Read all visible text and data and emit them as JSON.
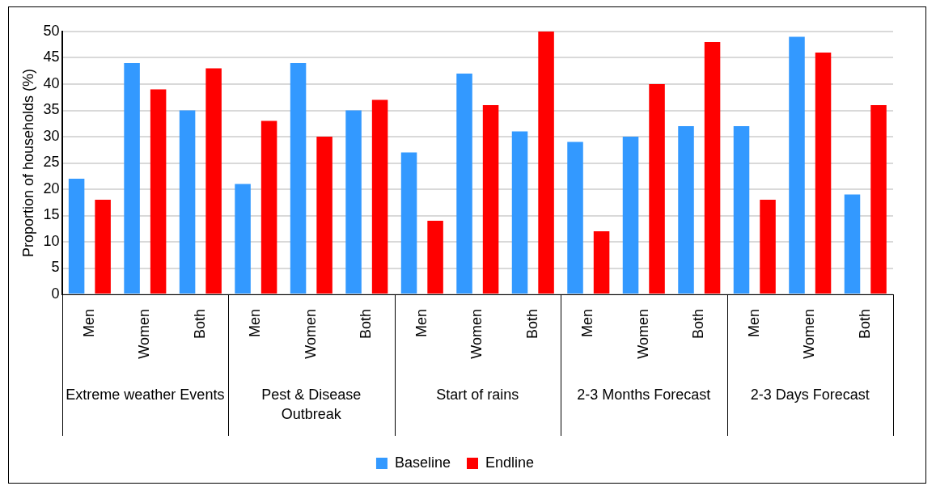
{
  "chart_data": {
    "type": "bar",
    "ylabel": "Proportion of households (%)",
    "categories": [
      "Men",
      "Women",
      "Both",
      "Men",
      "Women",
      "Both",
      "Men",
      "Women",
      "Both",
      "Men",
      "Women",
      "Both",
      "Men",
      "Women",
      "Both"
    ],
    "series": [
      {
        "name": "Baseline",
        "color": "#3399ff",
        "values": [
          22,
          44,
          35,
          21,
          44,
          35,
          27,
          42,
          31,
          29,
          30,
          32,
          32,
          49,
          19
        ]
      },
      {
        "name": "Endline",
        "color": "#ff0000",
        "values": [
          18,
          39,
          43,
          33,
          30,
          37,
          14,
          36,
          50,
          12,
          40,
          48,
          18,
          46,
          36
        ]
      }
    ],
    "annotations": [
      "Extreme weather Events",
      "Pest & Disease Outbreak",
      "Start of rains",
      "2-3 Months Forecast",
      "2-3 Days Forecast"
    ],
    "ylim": [
      0,
      50
    ],
    "yticks": [
      0,
      5,
      10,
      15,
      20,
      25,
      30,
      35,
      40,
      45,
      50
    ],
    "grid": "y",
    "legend": "bottom"
  }
}
